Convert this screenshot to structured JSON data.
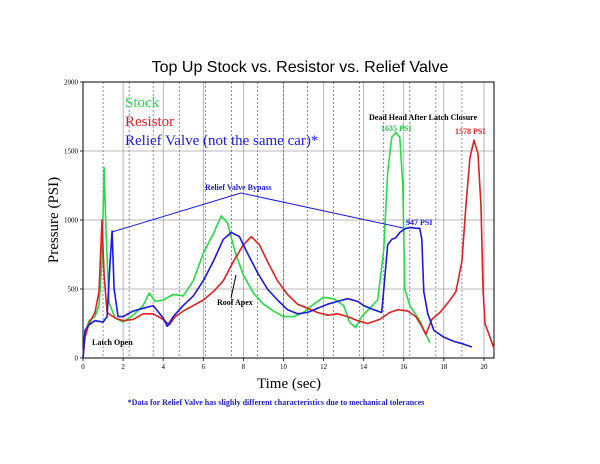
{
  "chart_data": {
    "type": "line",
    "title": "Top Up Stock vs. Resistor vs. Relief Valve",
    "xlabel": "Time (sec)",
    "ylabel": "Pressure (PSI)",
    "xlim": [
      0,
      20.5
    ],
    "ylim": [
      0,
      2000
    ],
    "x_ticks": [
      "0",
      "2",
      "4",
      "6",
      "8",
      "10",
      "12",
      "14",
      "16",
      "18",
      "20"
    ],
    "y_ticks": [
      "0",
      "500",
      "1000",
      "1500",
      "2000"
    ],
    "legend_placement": "top-left",
    "legend": [
      "Stock",
      "Resistor",
      "Relief Valve (not the same car)*"
    ],
    "annotations": {
      "dead_head": "Dead Head After Latch Closure",
      "peak_stock": "1635 PSI",
      "peak_resistor": "1578 PSI",
      "peak_relief": "947 PSI",
      "relief_bypass": "Relief Valve Bypass",
      "roof_apex": "Roof Apex",
      "latch_open": "Latch Open"
    },
    "footnote": "*Data for Relief Valve has slighly different characteristics due to mechanical tolerances",
    "dashed_vertical_gridlines_x": [
      1,
      2.3,
      3.5,
      4.8,
      6.1,
      7.4,
      8.7,
      10,
      11.2,
      12.5,
      13.8,
      15,
      16.3,
      17.6,
      18.9
    ],
    "series": [
      {
        "name": "Stock",
        "color": "#22dd44",
        "points": [
          [
            0,
            0
          ],
          [
            0.1,
            180
          ],
          [
            0.3,
            270
          ],
          [
            0.6,
            300
          ],
          [
            0.8,
            380
          ],
          [
            0.95,
            700
          ],
          [
            1.05,
            1380
          ],
          [
            1.15,
            900
          ],
          [
            1.3,
            400
          ],
          [
            1.6,
            290
          ],
          [
            2,
            260
          ],
          [
            2.5,
            310
          ],
          [
            3,
            380
          ],
          [
            3.3,
            470
          ],
          [
            3.6,
            410
          ],
          [
            4,
            420
          ],
          [
            4.5,
            460
          ],
          [
            5,
            450
          ],
          [
            5.5,
            560
          ],
          [
            6,
            760
          ],
          [
            6.5,
            900
          ],
          [
            6.9,
            1030
          ],
          [
            7.2,
            980
          ],
          [
            7.6,
            760
          ],
          [
            8,
            600
          ],
          [
            8.5,
            470
          ],
          [
            9,
            390
          ],
          [
            9.5,
            340
          ],
          [
            10,
            300
          ],
          [
            10.5,
            300
          ],
          [
            11,
            330
          ],
          [
            11.5,
            390
          ],
          [
            12,
            440
          ],
          [
            12.5,
            430
          ],
          [
            13,
            380
          ],
          [
            13.3,
            260
          ],
          [
            13.6,
            220
          ],
          [
            13.9,
            300
          ],
          [
            14.3,
            360
          ],
          [
            14.7,
            420
          ],
          [
            15,
            780
          ],
          [
            15.2,
            1350
          ],
          [
            15.4,
            1600
          ],
          [
            15.6,
            1635
          ],
          [
            15.8,
            1600
          ],
          [
            15.95,
            1250
          ],
          [
            16.05,
            500
          ],
          [
            16.3,
            380
          ],
          [
            16.8,
            270
          ],
          [
            17.3,
            110
          ]
        ]
      },
      {
        "name": "Resistor",
        "color": "#dd2020",
        "points": [
          [
            0,
            0
          ],
          [
            0.1,
            150
          ],
          [
            0.3,
            250
          ],
          [
            0.6,
            330
          ],
          [
            0.8,
            480
          ],
          [
            0.95,
            1000
          ],
          [
            1.05,
            600
          ],
          [
            1.2,
            330
          ],
          [
            1.6,
            290
          ],
          [
            2,
            270
          ],
          [
            2.5,
            280
          ],
          [
            3,
            320
          ],
          [
            3.5,
            320
          ],
          [
            4,
            280
          ],
          [
            4.3,
            240
          ],
          [
            4.6,
            300
          ],
          [
            5,
            340
          ],
          [
            5.5,
            380
          ],
          [
            6,
            420
          ],
          [
            6.5,
            480
          ],
          [
            7,
            560
          ],
          [
            7.5,
            700
          ],
          [
            8,
            820
          ],
          [
            8.4,
            880
          ],
          [
            8.8,
            820
          ],
          [
            9.2,
            700
          ],
          [
            9.7,
            560
          ],
          [
            10.2,
            460
          ],
          [
            10.7,
            390
          ],
          [
            11.2,
            360
          ],
          [
            11.7,
            330
          ],
          [
            12.2,
            310
          ],
          [
            12.7,
            320
          ],
          [
            13.2,
            300
          ],
          [
            13.7,
            270
          ],
          [
            14.2,
            250
          ],
          [
            14.8,
            280
          ],
          [
            15.3,
            330
          ],
          [
            15.7,
            350
          ],
          [
            16.2,
            340
          ],
          [
            16.6,
            300
          ],
          [
            16.9,
            230
          ],
          [
            17.1,
            170
          ],
          [
            17.4,
            280
          ],
          [
            17.8,
            330
          ],
          [
            18.2,
            400
          ],
          [
            18.6,
            480
          ],
          [
            18.9,
            700
          ],
          [
            19.1,
            1100
          ],
          [
            19.3,
            1450
          ],
          [
            19.5,
            1578
          ],
          [
            19.7,
            1480
          ],
          [
            19.85,
            1100
          ],
          [
            19.95,
            500
          ],
          [
            20.05,
            250
          ],
          [
            20.5,
            70
          ]
        ]
      },
      {
        "name": "Relief Valve (not the same car)*",
        "color": "#1a1add",
        "points": [
          [
            0,
            0
          ],
          [
            0.1,
            200
          ],
          [
            0.3,
            240
          ],
          [
            0.6,
            270
          ],
          [
            1.0,
            260
          ],
          [
            1.2,
            300
          ],
          [
            1.35,
            700
          ],
          [
            1.45,
            920
          ],
          [
            1.55,
            500
          ],
          [
            1.75,
            300
          ],
          [
            2,
            300
          ],
          [
            2.5,
            340
          ],
          [
            3,
            360
          ],
          [
            3.5,
            380
          ],
          [
            4,
            290
          ],
          [
            4.2,
            230
          ],
          [
            4.5,
            300
          ],
          [
            5,
            380
          ],
          [
            5.5,
            450
          ],
          [
            6,
            560
          ],
          [
            6.5,
            700
          ],
          [
            7,
            860
          ],
          [
            7.4,
            910
          ],
          [
            7.8,
            880
          ],
          [
            8.2,
            760
          ],
          [
            8.7,
            620
          ],
          [
            9.2,
            500
          ],
          [
            9.7,
            420
          ],
          [
            10.2,
            350
          ],
          [
            10.7,
            320
          ],
          [
            11.2,
            330
          ],
          [
            11.7,
            360
          ],
          [
            12.2,
            390
          ],
          [
            12.7,
            410
          ],
          [
            13.2,
            430
          ],
          [
            13.7,
            410
          ],
          [
            14,
            380
          ],
          [
            14.5,
            350
          ],
          [
            14.9,
            330
          ],
          [
            15.2,
            820
          ],
          [
            15.4,
            860
          ],
          [
            15.6,
            870
          ],
          [
            15.8,
            910
          ],
          [
            16.1,
            940
          ],
          [
            16.4,
            945
          ],
          [
            16.6,
            940
          ],
          [
            16.8,
            940
          ],
          [
            16.9,
            860
          ],
          [
            17.0,
            480
          ],
          [
            17.2,
            320
          ],
          [
            17.5,
            200
          ],
          [
            18,
            150
          ],
          [
            18.5,
            120
          ],
          [
            19,
            100
          ],
          [
            19.4,
            80
          ]
        ]
      }
    ]
  }
}
